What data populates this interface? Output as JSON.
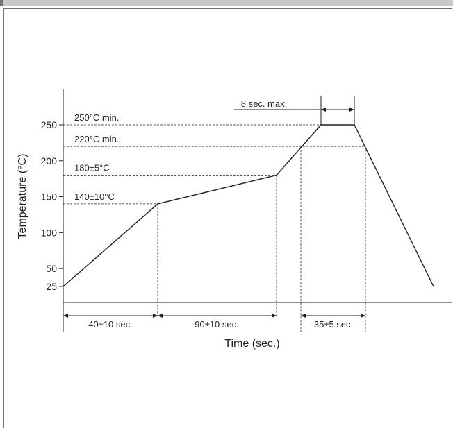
{
  "chart_data": {
    "type": "line",
    "xlabel": "Time (sec.)",
    "ylabel": "Temperature (°C)",
    "yticks": [
      25,
      50,
      100,
      150,
      200,
      250
    ],
    "ylim": [
      0,
      300
    ],
    "series": [
      {
        "values": [
          25,
          140,
          180,
          250,
          250,
          25
        ]
      }
    ],
    "annotations": {
      "levels": [
        {
          "text": "250°C min.",
          "value": 250
        },
        {
          "text": "220°C min.",
          "value": 220
        },
        {
          "text": "180±5°C",
          "value": 180
        },
        {
          "text": "140±10°C",
          "value": 140
        }
      ],
      "durations": [
        {
          "text": "40±10 sec."
        },
        {
          "text": "90±10 sec."
        },
        {
          "text": "35±5 sec."
        },
        {
          "text": "8 sec. max."
        }
      ]
    },
    "grid": false,
    "legend": "none"
  },
  "colors": {
    "line": "#231f20",
    "frame": "#6f6f6f",
    "topbar": "#c9c9c9"
  }
}
